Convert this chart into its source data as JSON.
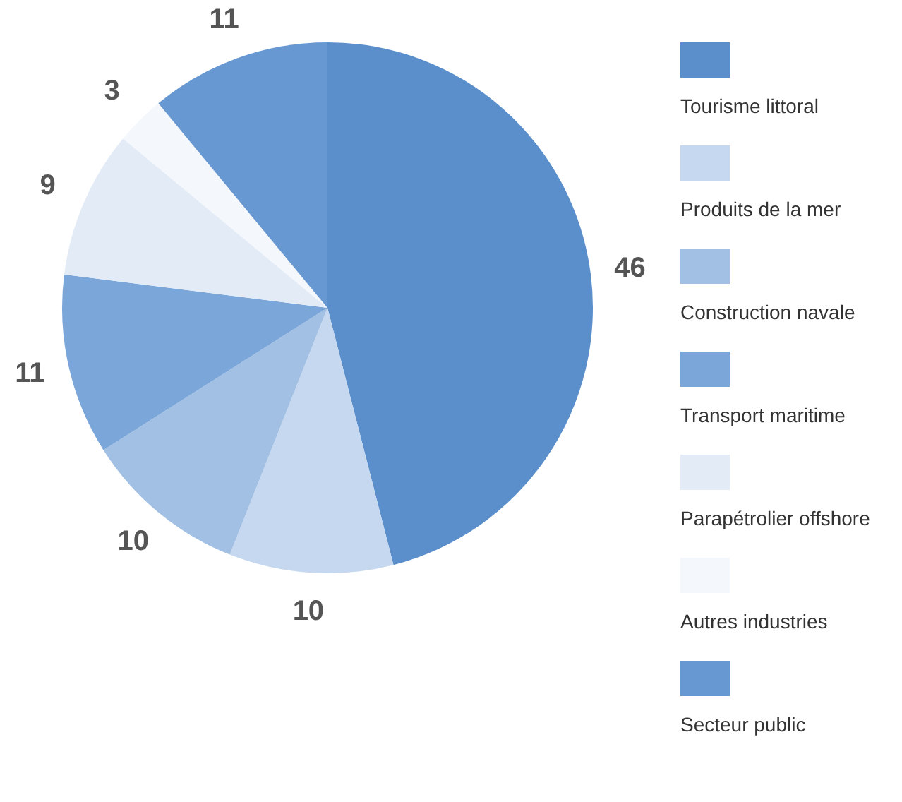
{
  "chart_data": {
    "type": "pie",
    "categories": [
      "Tourisme littoral",
      "Produits de la mer",
      "Construction navale",
      "Transport maritime",
      "Parapétrolier offshore",
      "Autres industries",
      "Secteur public"
    ],
    "values": [
      46,
      10,
      10,
      11,
      9,
      3,
      11
    ],
    "colors": [
      "#5b8fcc",
      "#c6d8ef",
      "#a2c0e4",
      "#7ba6d9",
      "#e3ebf6",
      "#f4f7fb",
      "#6898d1"
    ],
    "data_labels": true,
    "legend": "right"
  }
}
